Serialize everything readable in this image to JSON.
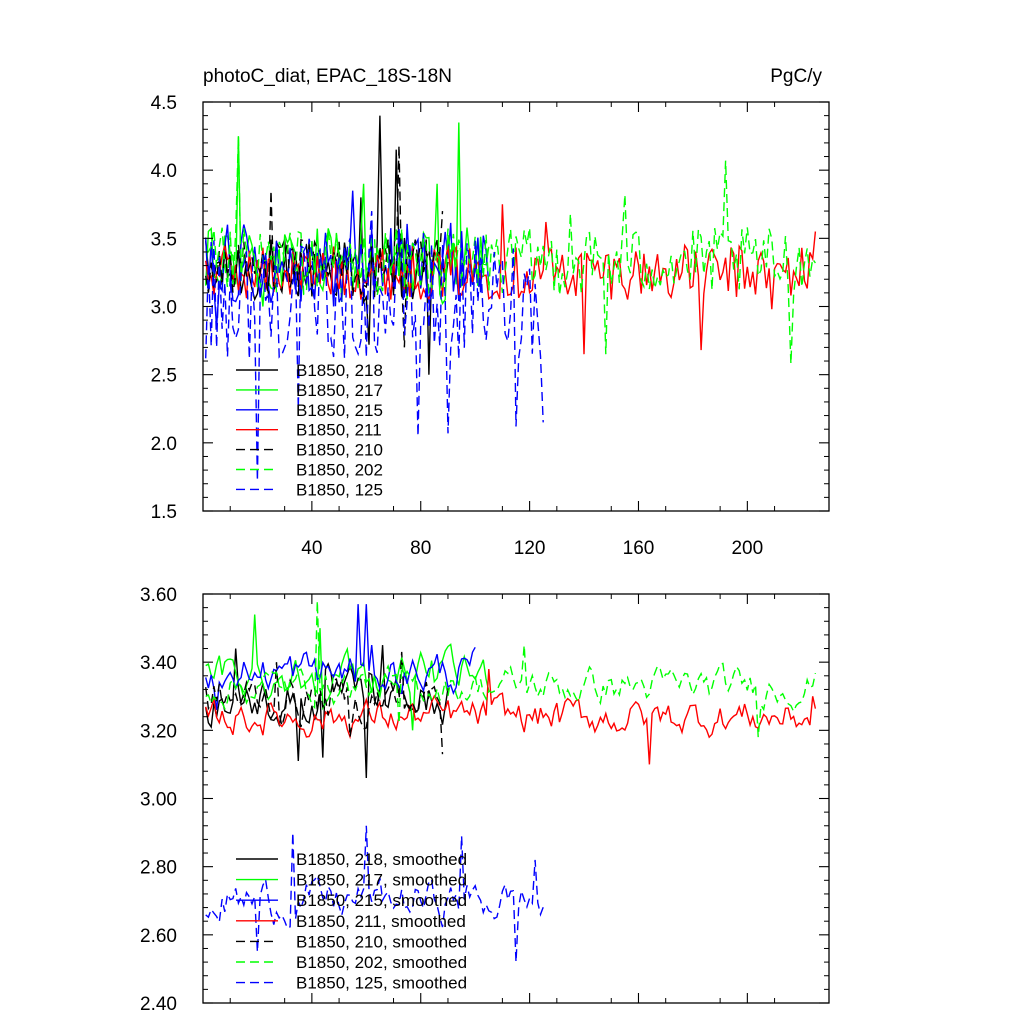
{
  "chart_data": [
    {
      "type": "line",
      "title": "photoC_diat, EPAC_18S-18N",
      "units": "PgC/y",
      "xlabel": "",
      "ylabel": "",
      "xlim": [
        0,
        230
      ],
      "ylim": [
        1.5,
        4.5
      ],
      "xticks": [
        40,
        80,
        120,
        160,
        200
      ],
      "xtick_labels": [
        "40",
        "80",
        "120",
        "160",
        "200"
      ],
      "yticks": [
        1.5,
        2.0,
        2.5,
        3.0,
        3.5,
        4.0,
        4.5
      ],
      "ytick_labels": [
        "1.5",
        "2.0",
        "2.5",
        "3.0",
        "3.5",
        "4.0",
        "4.5"
      ],
      "legend_position": "bottom-left",
      "series": [
        {
          "name": "B1850, 218",
          "color": "#000000",
          "dash": "solid",
          "length": 90,
          "mean": 3.27,
          "amp": 0.24,
          "points": [
            [
              65,
              4.4
            ],
            [
              71,
              4.15
            ],
            [
              58,
              3.8
            ],
            [
              61,
              2.72
            ],
            [
              83,
              2.5
            ]
          ]
        },
        {
          "name": "B1850, 217",
          "color": "#00ff00",
          "dash": "solid",
          "length": 105,
          "mean": 3.3,
          "amp": 0.28,
          "points": [
            [
              94,
              4.35
            ],
            [
              13,
              4.25
            ],
            [
              86,
              3.9
            ],
            [
              59,
              3.9
            ],
            [
              22,
              3.0
            ]
          ]
        },
        {
          "name": "B1850, 215",
          "color": "#0000ff",
          "dash": "solid",
          "length": 105,
          "mean": 3.32,
          "amp": 0.3,
          "points": [
            [
              55,
              3.85
            ],
            [
              9,
              3.6
            ],
            [
              5,
              2.85
            ],
            [
              48,
              3.0
            ]
          ]
        },
        {
          "name": "B1850, 211",
          "color": "#ff0000",
          "dash": "solid",
          "length": 225,
          "mean": 3.25,
          "amp": 0.2,
          "points": [
            [
              110,
              3.75
            ],
            [
              126,
              3.62
            ],
            [
              140,
              2.65
            ],
            [
              183,
              2.68
            ],
            [
              209,
              2.98
            ],
            [
              225,
              3.55
            ]
          ]
        },
        {
          "name": "B1850, 210",
          "color": "#000000",
          "dash": "dashed",
          "length": 88,
          "mean": 3.28,
          "amp": 0.22,
          "points": [
            [
              72,
              4.18
            ],
            [
              25,
              3.85
            ],
            [
              74,
              2.7
            ],
            [
              88,
              3.7
            ]
          ]
        },
        {
          "name": "B1850, 202",
          "color": "#00ff00",
          "dash": "dashed",
          "length": 225,
          "mean": 3.33,
          "amp": 0.25,
          "points": [
            [
              13,
              4.25
            ],
            [
              192,
              4.07
            ],
            [
              155,
              3.82
            ],
            [
              216,
              2.58
            ],
            [
              148,
              2.65
            ],
            [
              135,
              3.68
            ]
          ]
        },
        {
          "name": "B1850, 125",
          "color": "#0000ff",
          "dash": "dashed",
          "length": 125,
          "mean": 3.05,
          "amp": 0.45,
          "points": [
            [
              20,
              1.72
            ],
            [
              79,
              2.05
            ],
            [
              90,
              2.07
            ],
            [
              115,
              2.12
            ],
            [
              125,
              2.15
            ],
            [
              35,
              2.25
            ],
            [
              62,
              3.7
            ]
          ]
        }
      ]
    },
    {
      "type": "line",
      "title": "",
      "xlabel": "",
      "ylabel": "",
      "xlim": [
        0,
        230
      ],
      "ylim": [
        2.4,
        3.6
      ],
      "xticks": [
        40,
        80,
        120,
        160,
        200
      ],
      "yticks": [
        2.4,
        2.6,
        2.8,
        3.0,
        3.2,
        3.4,
        3.6
      ],
      "ytick_labels": [
        "2.40",
        "2.60",
        "2.80",
        "3.00",
        "3.20",
        "3.40",
        "3.60"
      ],
      "legend_position": "bottom-left",
      "series": [
        {
          "name": "B1850, 218, smoothed",
          "color": "#000000",
          "dash": "solid",
          "length": 90,
          "mean": 3.29,
          "amp": 0.07,
          "points": [
            [
              60,
              3.06
            ],
            [
              35,
              3.11
            ],
            [
              44,
              3.12
            ],
            [
              12,
              3.44
            ],
            [
              66,
              3.45
            ]
          ]
        },
        {
          "name": "B1850, 217, smoothed",
          "color": "#00ff00",
          "dash": "solid",
          "length": 105,
          "mean": 3.36,
          "amp": 0.06,
          "points": [
            [
              19,
              3.54
            ],
            [
              43,
              3.5
            ],
            [
              77,
              3.2
            ]
          ]
        },
        {
          "name": "B1850, 215, smoothed",
          "color": "#0000ff",
          "dash": "solid",
          "length": 100,
          "mean": 3.37,
          "amp": 0.06,
          "points": [
            [
              57,
              3.57
            ],
            [
              60,
              3.57
            ],
            [
              62,
              3.45
            ],
            [
              5,
              3.26
            ]
          ]
        },
        {
          "name": "B1850, 211, smoothed",
          "color": "#ff0000",
          "dash": "solid",
          "length": 225,
          "mean": 3.24,
          "amp": 0.05,
          "points": [
            [
              164,
              3.1
            ],
            [
              105,
              3.38
            ],
            [
              224,
              3.3
            ],
            [
              130,
              3.28
            ]
          ]
        },
        {
          "name": "B1850, 210, smoothed",
          "color": "#000000",
          "dash": "dashed",
          "length": 88,
          "mean": 3.29,
          "amp": 0.07,
          "points": [
            [
              27,
              3.4
            ],
            [
              54,
              3.18
            ],
            [
              88,
              3.13
            ],
            [
              73,
              3.43
            ]
          ]
        },
        {
          "name": "B1850, 202, smoothed",
          "color": "#00ff00",
          "dash": "dashed",
          "length": 225,
          "mean": 3.33,
          "amp": 0.05,
          "points": [
            [
              42,
              3.58
            ],
            [
              118,
              3.45
            ],
            [
              204,
              3.18
            ],
            [
              72,
              3.22
            ]
          ]
        },
        {
          "name": "B1850, 125, smoothed",
          "color": "#0000ff",
          "dash": "dashed",
          "length": 125,
          "mean": 2.7,
          "amp": 0.06,
          "points": [
            [
              33,
              2.9
            ],
            [
              60,
              2.92
            ],
            [
              20,
              2.55
            ],
            [
              95,
              2.89
            ],
            [
              115,
              2.52
            ],
            [
              122,
              2.82
            ],
            [
              124,
              2.66
            ]
          ]
        }
      ]
    }
  ]
}
